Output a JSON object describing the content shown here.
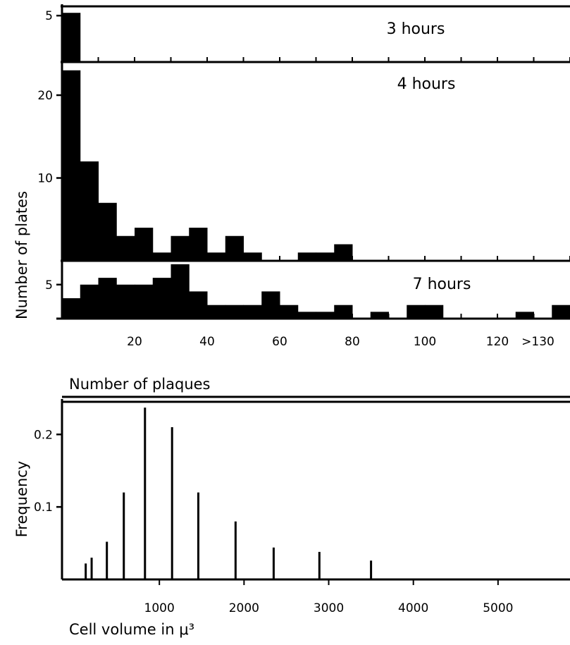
{
  "chart_data": [
    {
      "type": "bar",
      "panel": "top",
      "ylabel": "Number of plates",
      "xlabel": "Number of plaques",
      "xlim": [
        0,
        140
      ],
      "x_tick_labels": [
        "20",
        "40",
        "60",
        "80",
        "100",
        "120",
        ">130"
      ],
      "x_tick_values": [
        20,
        40,
        60,
        80,
        100,
        120,
        130
      ],
      "bin_width": 5,
      "series": [
        {
          "name": "3 hours",
          "ylim": [
            0,
            6
          ],
          "y_tick_labels": [
            "5"
          ],
          "y_tick_values": [
            5
          ],
          "bin_starts": [
            0
          ],
          "values": [
            5.3
          ]
        },
        {
          "name": "4 hours",
          "ylim": [
            0,
            24
          ],
          "y_tick_labels": [
            "20",
            "10"
          ],
          "y_tick_values": [
            20,
            10
          ],
          "bin_starts": [
            0,
            5,
            10,
            15,
            20,
            25,
            30,
            35,
            40,
            45,
            50,
            55,
            60,
            65,
            70,
            75,
            80
          ],
          "values": [
            23,
            12,
            7,
            3,
            4,
            1,
            3,
            4,
            1,
            3,
            1,
            0,
            0,
            1,
            1,
            2,
            0
          ]
        },
        {
          "name": "7 hours",
          "ylim": [
            0,
            8.5
          ],
          "y_tick_labels": [
            "5"
          ],
          "y_tick_values": [
            5
          ],
          "bin_starts": [
            0,
            5,
            10,
            15,
            20,
            25,
            30,
            35,
            40,
            45,
            50,
            55,
            60,
            65,
            70,
            75,
            80,
            85,
            90,
            95,
            100,
            105,
            110,
            115,
            120,
            125,
            130,
            135
          ],
          "values": [
            3,
            5,
            6,
            5,
            5,
            6,
            8,
            4,
            2,
            2,
            2,
            4,
            2,
            1,
            1,
            2,
            0,
            1,
            0,
            2,
            2,
            0,
            0,
            0,
            0,
            1,
            0,
            2
          ]
        }
      ]
    },
    {
      "type": "bar",
      "panel": "bottom",
      "ylabel": "Frequency",
      "xlabel": "Cell volume in μ³",
      "xlim": [
        -150,
        5850
      ],
      "ylim": [
        0,
        0.245
      ],
      "x_tick_labels": [
        "1000",
        "2000",
        "3000",
        "4000",
        "5000"
      ],
      "x_tick_values": [
        1000,
        2000,
        3000,
        4000,
        5000
      ],
      "y_tick_labels": [
        "0.2",
        "0.1"
      ],
      "y_tick_values": [
        0.2,
        0.1
      ],
      "x": [
        130,
        200,
        380,
        580,
        830,
        1150,
        1460,
        1900,
        2350,
        2890,
        3500
      ],
      "values": [
        0.022,
        0.03,
        0.052,
        0.12,
        0.237,
        0.21,
        0.12,
        0.08,
        0.044,
        0.038,
        0.026
      ]
    }
  ]
}
